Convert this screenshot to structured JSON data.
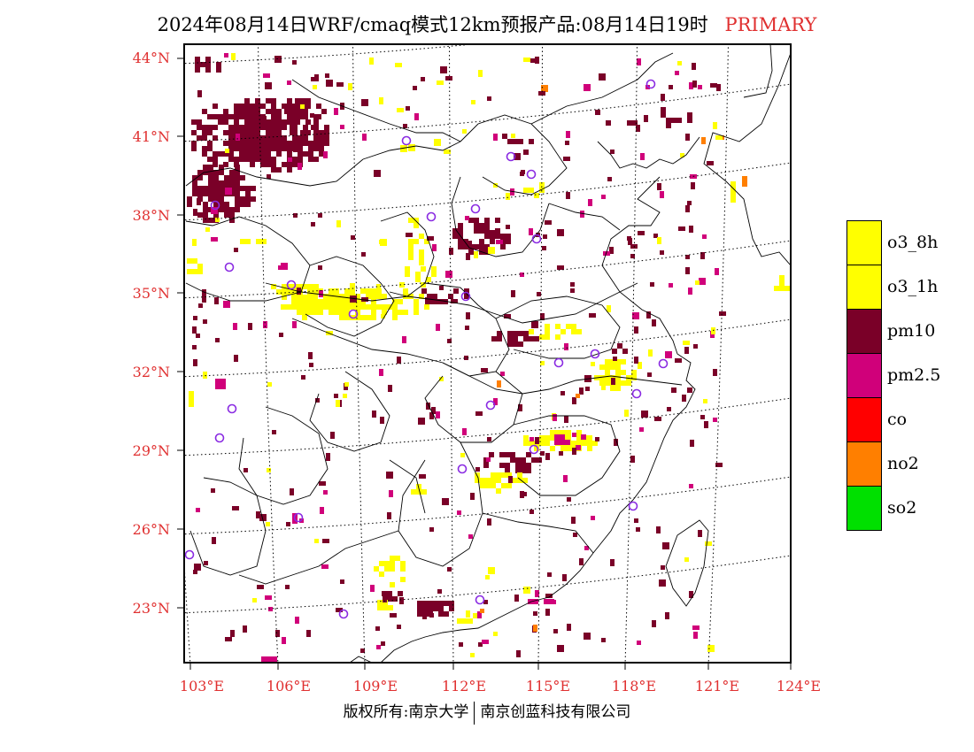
{
  "title": {
    "main": "2024年08月14日WRF/cmaq模式12km预报产品:08月14日19时",
    "tag": "PRIMARY"
  },
  "map": {
    "lat_labels": [
      "44°N",
      "41°N",
      "38°N",
      "35°N",
      "32°N",
      "29°N",
      "26°N",
      "23°N"
    ],
    "lon_labels": [
      "103°E",
      "106°E",
      "109°E",
      "112°E",
      "115°E",
      "118°E",
      "121°E",
      "124°E"
    ],
    "colors": {
      "o3": "#ffff00",
      "pm10": "#7a0028",
      "pm25": "#d0007a",
      "co": "#ff0000",
      "no2": "#ff7f00",
      "so2": "#00e000",
      "station": "#8a2be2",
      "boundary": "#000000",
      "grid": "#000000",
      "axis_label": "#e03030"
    }
  },
  "legend": {
    "items": [
      {
        "label": "o3_8h",
        "color": "#ffff00"
      },
      {
        "label": "o3_1h",
        "color": "#ffff00"
      },
      {
        "label": "pm10",
        "color": "#7a0028"
      },
      {
        "label": "pm2.5",
        "color": "#d0007a"
      },
      {
        "label": "co",
        "color": "#ff0000"
      },
      {
        "label": "no2",
        "color": "#ff7f00"
      },
      {
        "label": "so2",
        "color": "#00e000"
      }
    ]
  },
  "footer": {
    "left": "版权所有:南京大学",
    "right": "南京创蓝科技有限公司"
  }
}
